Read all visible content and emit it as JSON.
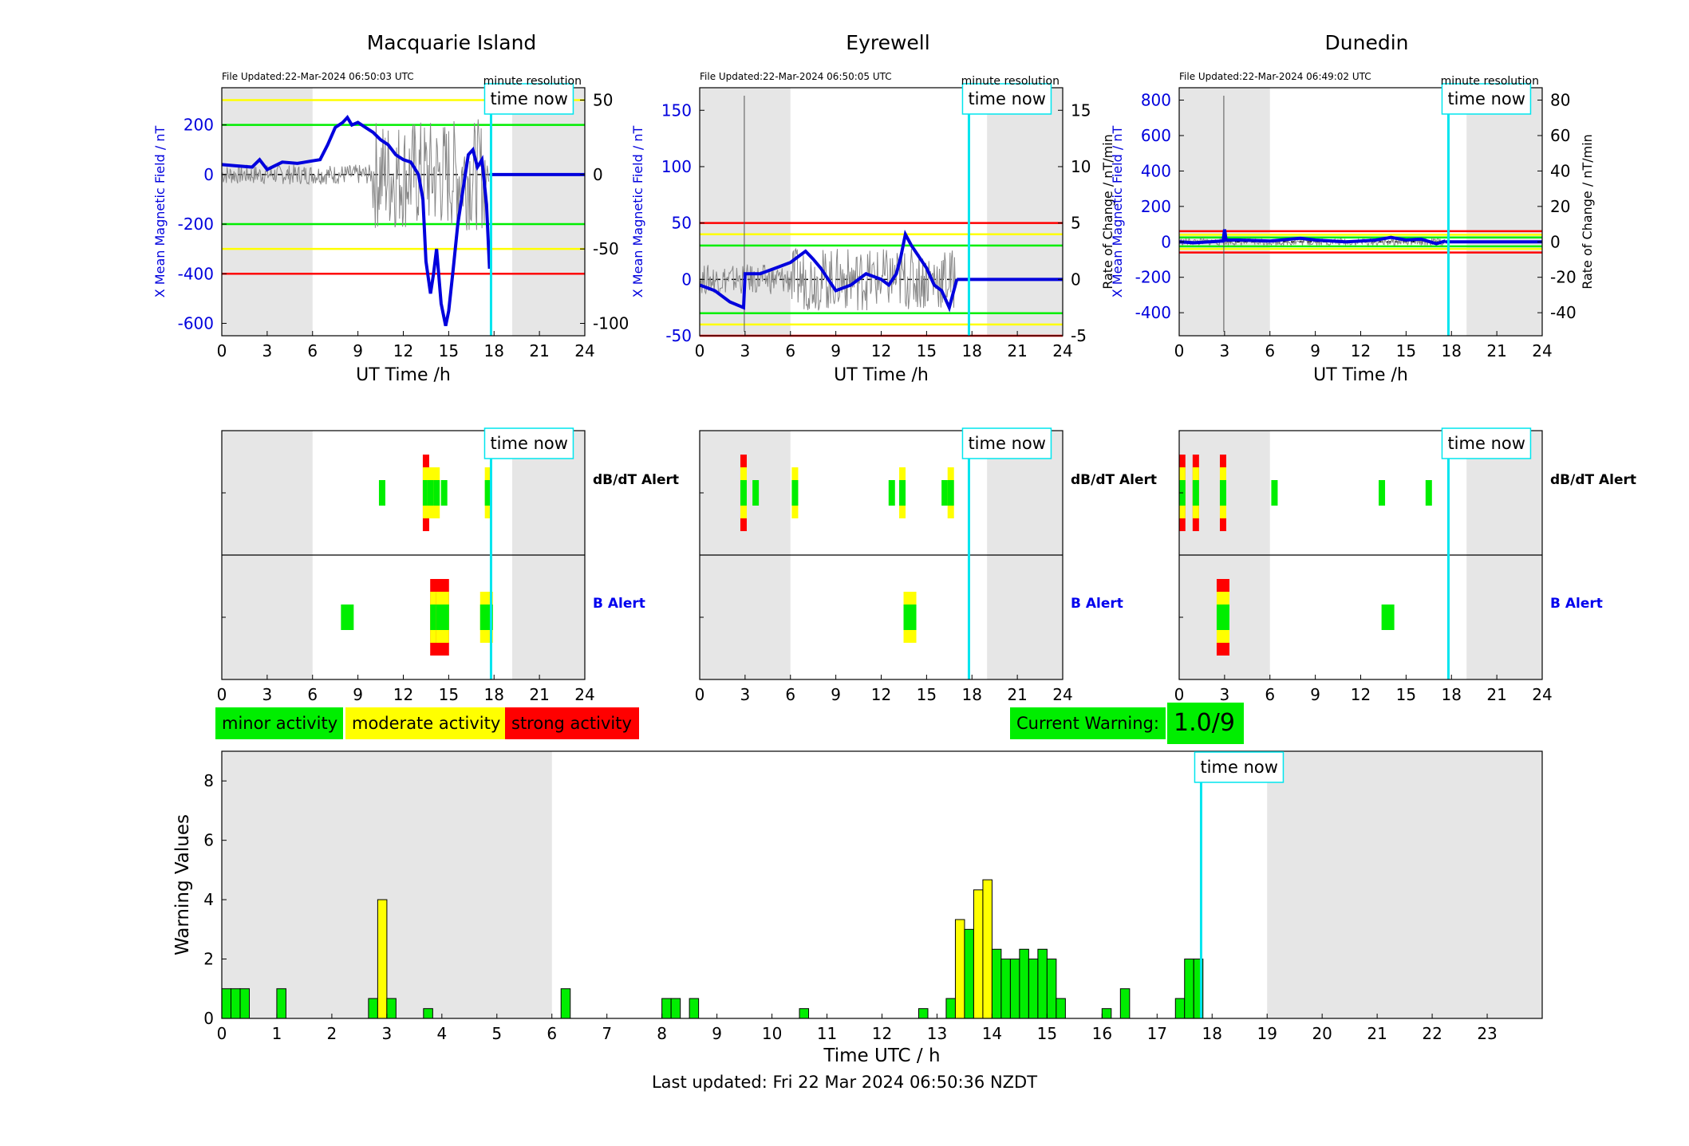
{
  "colors": {
    "green": "#00ee00",
    "yellow": "#ffff00",
    "red": "#ff0000",
    "cyan": "#00e5ee",
    "blue": "#0000dd",
    "shade": "#e6e6e6"
  },
  "legend": {
    "minor": "minor activity",
    "moderate": "moderate activity",
    "strong": "strong activity"
  },
  "current_warning": {
    "label": "Current Warning:",
    "value": "1.0/9"
  },
  "footer": "Last updated: Fri 22 Mar 2024 06:50:36 NZDT",
  "chart_data": [
    {
      "type": "line",
      "station": "Macquarie Island",
      "file_updated": "File Updated:22-Mar-2024 06:50:03 UTC",
      "resolution_label": "minute resolution",
      "time_now_label": "time now",
      "xlabel": "UT Time /h",
      "ylabel": "X Mean Magnetic Field / nT",
      "ylabel_right": "",
      "xlim": [
        0,
        24
      ],
      "ylim": [
        -650,
        350
      ],
      "ylim_right": [
        -108.3,
        58.3
      ],
      "xticks": [
        0,
        3,
        6,
        9,
        12,
        15,
        18,
        21,
        24
      ],
      "yticks": [
        -600,
        -400,
        -200,
        0,
        200
      ],
      "yticks_right": [
        -100,
        -50,
        0,
        50
      ],
      "thresholds": [
        {
          "y": 300,
          "color": "yellow"
        },
        {
          "y": -300,
          "color": "yellow"
        },
        {
          "y": 200,
          "color": "green"
        },
        {
          "y": -200,
          "color": "green"
        },
        {
          "y": -400,
          "color": "red"
        }
      ],
      "night": [
        [
          0,
          6
        ],
        [
          19.2,
          24
        ]
      ],
      "time_now": 17.8,
      "data_end": 17.7,
      "series": [
        {
          "x": [
            0,
            1,
            2,
            2.5,
            3,
            4,
            5,
            6,
            6.5,
            7,
            7.5,
            8,
            8.3,
            8.6,
            9,
            9.5,
            10,
            10.5,
            11,
            11.5,
            12,
            12.5,
            13,
            13.3,
            13.5,
            13.8,
            14,
            14.2,
            14.5,
            14.8,
            15,
            15.3,
            15.6,
            16,
            16.3,
            16.6,
            16.9,
            17.2,
            17.5,
            17.7
          ],
          "y": [
            40,
            35,
            30,
            60,
            20,
            50,
            45,
            55,
            60,
            120,
            190,
            210,
            230,
            200,
            210,
            190,
            170,
            140,
            120,
            80,
            60,
            50,
            0,
            -100,
            -350,
            -480,
            -400,
            -300,
            -520,
            -610,
            -550,
            -380,
            -200,
            -40,
            80,
            100,
            30,
            60,
            -120,
            -380
          ]
        }
      ]
    },
    {
      "type": "line",
      "station": "Eyrewell",
      "file_updated": "File Updated:22-Mar-2024 06:50:05 UTC",
      "resolution_label": "minute resolution",
      "time_now_label": "time now",
      "xlabel": "UT Time /h",
      "ylabel": "X Mean Magnetic Field / nT",
      "ylabel_right": "Rate of Change / nT/min",
      "xlim": [
        0,
        24
      ],
      "ylim": [
        -50,
        170
      ],
      "ylim_right": [
        -5,
        17
      ],
      "xticks": [
        0,
        3,
        6,
        9,
        12,
        15,
        18,
        21,
        24
      ],
      "yticks": [
        -50,
        0,
        50,
        100,
        150
      ],
      "yticks_right": [
        -5,
        0,
        5,
        10,
        15
      ],
      "thresholds": [
        {
          "y": 50,
          "color": "red"
        },
        {
          "y": -50,
          "color": "red"
        },
        {
          "y": 40,
          "color": "yellow"
        },
        {
          "y": -40,
          "color": "yellow"
        },
        {
          "y": 30,
          "color": "green"
        },
        {
          "y": -30,
          "color": "green"
        }
      ],
      "night": [
        [
          0,
          6
        ],
        [
          19,
          24
        ]
      ],
      "time_now": 17.8,
      "data_end": 17.0,
      "series": [
        {
          "x": [
            0,
            1,
            2,
            2.9,
            3.0,
            4,
            5,
            6,
            6.5,
            7,
            7.5,
            8,
            8.5,
            9,
            10,
            11,
            12,
            12.5,
            13,
            13.3,
            13.6,
            14,
            14.5,
            15,
            15.5,
            16,
            16.5,
            17
          ],
          "y": [
            -5,
            -10,
            -20,
            -25,
            5,
            5,
            10,
            15,
            20,
            25,
            18,
            10,
            0,
            -10,
            -5,
            5,
            0,
            -5,
            5,
            20,
            40,
            30,
            20,
            10,
            -5,
            -10,
            -25,
            0
          ]
        }
      ]
    },
    {
      "type": "line",
      "station": "Dunedin",
      "file_updated": "File Updated:22-Mar-2024 06:49:02 UTC",
      "resolution_label": "minute resolution",
      "time_now_label": "time now",
      "xlabel": "UT Time /h",
      "ylabel": "X Mean Magnetic Field / nT",
      "ylabel_right": "Rate of Change / nT/min",
      "xlim": [
        0,
        24
      ],
      "ylim": [
        -530,
        870
      ],
      "ylim_right": [
        -53,
        87
      ],
      "xticks": [
        0,
        3,
        6,
        9,
        12,
        15,
        18,
        21,
        24
      ],
      "yticks": [
        -400,
        -200,
        0,
        200,
        400,
        600,
        800
      ],
      "yticks_right": [
        -40,
        -20,
        0,
        20,
        40,
        60,
        80
      ],
      "thresholds": [
        {
          "y": 60,
          "color": "red"
        },
        {
          "y": -60,
          "color": "red"
        },
        {
          "y": 40,
          "color": "yellow"
        },
        {
          "y": -40,
          "color": "yellow"
        },
        {
          "y": 25,
          "color": "green"
        },
        {
          "y": -25,
          "color": "green"
        }
      ],
      "night": [
        [
          0,
          6
        ],
        [
          19,
          24
        ]
      ],
      "time_now": 17.8,
      "data_end": 17.6,
      "series": [
        {
          "x": [
            0,
            1,
            2,
            2.9,
            3.0,
            3.1,
            4,
            6,
            8,
            9,
            11,
            12,
            13,
            14,
            15,
            16,
            17,
            17.6
          ],
          "y": [
            0,
            -5,
            0,
            5,
            70,
            10,
            10,
            5,
            20,
            10,
            0,
            5,
            10,
            25,
            10,
            15,
            -10,
            5
          ]
        }
      ]
    },
    {
      "type": "heatmap",
      "station": "Macquarie Island",
      "time_now_label": "time now",
      "rows": [
        "dB/dT Alert",
        "B Alert"
      ],
      "xlim": [
        0,
        24
      ],
      "xticks": [
        0,
        3,
        6,
        9,
        12,
        15,
        18,
        21,
        24
      ],
      "night": [
        [
          0,
          6
        ],
        [
          19.2,
          24
        ]
      ],
      "time_now": 17.8,
      "dbdt_events": [
        {
          "t": 10.6,
          "level": 1
        },
        {
          "t": 13.5,
          "level": 3
        },
        {
          "t": 13.8,
          "level": 2
        },
        {
          "t": 14.2,
          "level": 2
        },
        {
          "t": 14.7,
          "level": 1
        },
        {
          "t": 17.6,
          "level": 2
        }
      ],
      "b_events": [
        {
          "t": 8.3,
          "level": 1
        },
        {
          "t": 14.2,
          "level": 3
        },
        {
          "t": 14.6,
          "level": 3
        },
        {
          "t": 17.5,
          "level": 2
        }
      ]
    },
    {
      "type": "heatmap",
      "station": "Eyrewell",
      "time_now_label": "time now",
      "rows": [
        "dB/dT Alert",
        "B Alert"
      ],
      "xlim": [
        0,
        24
      ],
      "xticks": [
        0,
        3,
        6,
        9,
        12,
        15,
        18,
        21,
        24
      ],
      "night": [
        [
          0,
          6
        ],
        [
          19,
          24
        ]
      ],
      "time_now": 17.8,
      "dbdt_events": [
        {
          "t": 2.9,
          "level": 3
        },
        {
          "t": 3.7,
          "level": 1
        },
        {
          "t": 6.3,
          "level": 2
        },
        {
          "t": 12.7,
          "level": 1
        },
        {
          "t": 13.4,
          "level": 2
        },
        {
          "t": 16.2,
          "level": 1
        },
        {
          "t": 16.6,
          "level": 2
        }
      ],
      "b_events": [
        {
          "t": 13.9,
          "level": 2
        }
      ]
    },
    {
      "type": "heatmap",
      "station": "Dunedin",
      "time_now_label": "time now",
      "rows": [
        "dB/dT Alert",
        "B Alert"
      ],
      "xlim": [
        0,
        24
      ],
      "xticks": [
        0,
        3,
        6,
        9,
        12,
        15,
        18,
        21,
        24
      ],
      "night": [
        [
          0,
          6
        ],
        [
          19,
          24
        ]
      ],
      "time_now": 17.8,
      "dbdt_events": [
        {
          "t": 0.2,
          "level": 3
        },
        {
          "t": 1.1,
          "level": 3
        },
        {
          "t": 2.9,
          "level": 3
        },
        {
          "t": 6.3,
          "level": 1
        },
        {
          "t": 13.4,
          "level": 1
        },
        {
          "t": 16.5,
          "level": 1
        }
      ],
      "b_events": [
        {
          "t": 2.9,
          "level": 3
        },
        {
          "t": 13.8,
          "level": 1
        }
      ]
    },
    {
      "type": "bar",
      "title": "",
      "time_now_label": "time now",
      "xlabel": "Time UTC / h",
      "ylabel": "Warning Values",
      "xlim": [
        0,
        24
      ],
      "ylim": [
        0,
        9
      ],
      "xticks": [
        0,
        1,
        2,
        3,
        4,
        5,
        6,
        7,
        8,
        9,
        10,
        11,
        12,
        13,
        14,
        15,
        16,
        17,
        18,
        19,
        20,
        21,
        22,
        23
      ],
      "yticks": [
        0,
        2,
        4,
        6,
        8
      ],
      "night": [
        [
          0,
          6
        ],
        [
          19,
          24
        ]
      ],
      "time_now": 17.8,
      "bar_width": 0.167,
      "bars": [
        {
          "t": 0.083,
          "v": 1,
          "c": "green"
        },
        {
          "t": 0.25,
          "v": 1,
          "c": "green"
        },
        {
          "t": 0.417,
          "v": 1,
          "c": "green"
        },
        {
          "t": 1.083,
          "v": 1,
          "c": "green"
        },
        {
          "t": 2.75,
          "v": 0.67,
          "c": "green"
        },
        {
          "t": 2.917,
          "v": 4,
          "c": "yellow"
        },
        {
          "t": 3.083,
          "v": 0.67,
          "c": "green"
        },
        {
          "t": 3.75,
          "v": 0.33,
          "c": "green"
        },
        {
          "t": 6.25,
          "v": 1,
          "c": "green"
        },
        {
          "t": 8.083,
          "v": 0.67,
          "c": "green"
        },
        {
          "t": 8.25,
          "v": 0.67,
          "c": "green"
        },
        {
          "t": 8.583,
          "v": 0.67,
          "c": "green"
        },
        {
          "t": 10.583,
          "v": 0.33,
          "c": "green"
        },
        {
          "t": 12.75,
          "v": 0.33,
          "c": "green"
        },
        {
          "t": 13.25,
          "v": 0.67,
          "c": "green"
        },
        {
          "t": 13.417,
          "v": 3.33,
          "c": "yellow"
        },
        {
          "t": 13.583,
          "v": 3,
          "c": "green"
        },
        {
          "t": 13.75,
          "v": 4.33,
          "c": "yellow"
        },
        {
          "t": 13.917,
          "v": 4.67,
          "c": "yellow"
        },
        {
          "t": 14.083,
          "v": 2.33,
          "c": "green"
        },
        {
          "t": 14.25,
          "v": 2,
          "c": "green"
        },
        {
          "t": 14.417,
          "v": 2,
          "c": "green"
        },
        {
          "t": 14.583,
          "v": 2.33,
          "c": "green"
        },
        {
          "t": 14.75,
          "v": 2,
          "c": "green"
        },
        {
          "t": 14.917,
          "v": 2.33,
          "c": "green"
        },
        {
          "t": 15.083,
          "v": 2,
          "c": "green"
        },
        {
          "t": 15.25,
          "v": 0.67,
          "c": "green"
        },
        {
          "t": 16.083,
          "v": 0.33,
          "c": "green"
        },
        {
          "t": 16.417,
          "v": 1,
          "c": "green"
        },
        {
          "t": 17.417,
          "v": 0.67,
          "c": "green"
        },
        {
          "t": 17.583,
          "v": 2,
          "c": "green"
        },
        {
          "t": 17.75,
          "v": 2,
          "c": "green"
        }
      ]
    }
  ]
}
